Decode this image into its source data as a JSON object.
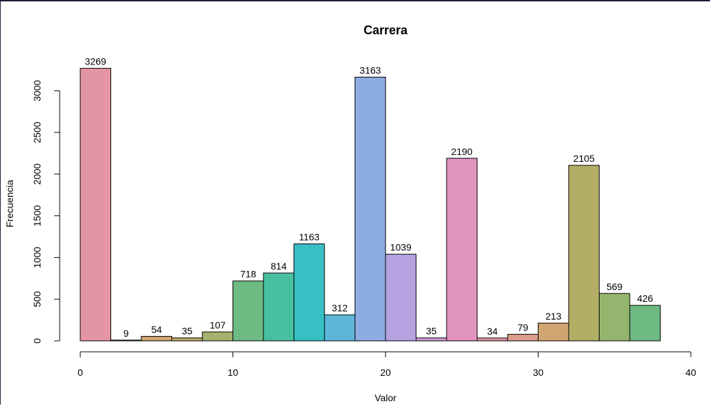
{
  "chart_data": {
    "type": "bar",
    "title": "Carrera",
    "xlabel": "Valor",
    "ylabel": "Frecuencia",
    "xlim": [
      0,
      40
    ],
    "ylim": [
      0,
      3269
    ],
    "bin_width": 2,
    "bins": [
      {
        "x0": 0,
        "x1": 2,
        "value": 3269,
        "color": "#E495A5"
      },
      {
        "x0": 2,
        "x1": 4,
        "value": 9,
        "color": "#DC9D89"
      },
      {
        "x0": 4,
        "x1": 6,
        "value": 54,
        "color": "#D1A572"
      },
      {
        "x0": 6,
        "x1": 8,
        "value": 35,
        "color": "#BDAB66"
      },
      {
        "x0": 8,
        "x1": 10,
        "value": 107,
        "color": "#A5B26F"
      },
      {
        "x0": 10,
        "x1": 12,
        "value": 718,
        "color": "#6DBA82"
      },
      {
        "x0": 12,
        "x1": 14,
        "value": 814,
        "color": "#48BFA0"
      },
      {
        "x0": 14,
        "x1": 16,
        "value": 1163,
        "color": "#38BFC4"
      },
      {
        "x0": 16,
        "x1": 18,
        "value": 312,
        "color": "#5DB6D8"
      },
      {
        "x0": 18,
        "x1": 20,
        "value": 3163,
        "color": "#8DACE2"
      },
      {
        "x0": 20,
        "x1": 22,
        "value": 1039,
        "color": "#B6A2E1"
      },
      {
        "x0": 22,
        "x1": 24,
        "value": 35,
        "color": "#D199D7"
      },
      {
        "x0": 24,
        "x1": 26,
        "value": 2190,
        "color": "#E193C0"
      },
      {
        "x0": 26,
        "x1": 28,
        "value": 34,
        "color": "#E495A5"
      },
      {
        "x0": 28,
        "x1": 30,
        "value": 79,
        "color": "#DC9D89"
      },
      {
        "x0": 30,
        "x1": 32,
        "value": 213,
        "color": "#D1A572"
      },
      {
        "x0": 32,
        "x1": 34,
        "value": 2105,
        "color": "#B3AE66"
      },
      {
        "x0": 34,
        "x1": 36,
        "value": 569,
        "color": "#94B56E"
      },
      {
        "x0": 36,
        "x1": 38,
        "value": 426,
        "color": "#6DBA82"
      }
    ],
    "x_ticks": [
      0,
      10,
      20,
      30,
      40
    ],
    "y_ticks": [
      0,
      500,
      1000,
      1500,
      2000,
      2500,
      3000
    ],
    "grid": false,
    "legend": "none"
  }
}
